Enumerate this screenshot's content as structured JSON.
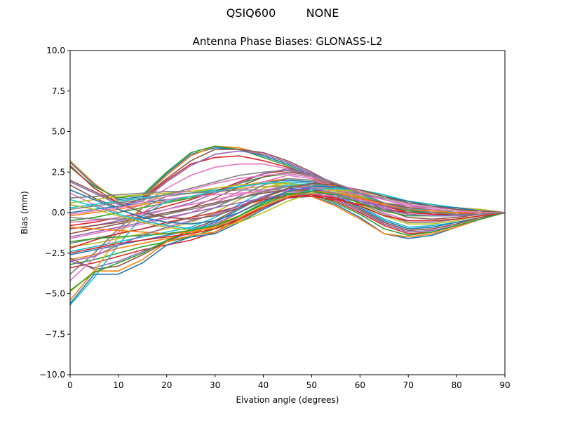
{
  "figure": {
    "suptitle_left": "QSIQ600",
    "suptitle_right": "NONE"
  },
  "chart_data": {
    "type": "line",
    "title": "Antenna Phase Biases: GLONASS-L2",
    "xlabel": "Elvation angle (degrees)",
    "ylabel": "Bias (mm)",
    "xlim": [
      0,
      90
    ],
    "ylim": [
      -10.0,
      10.0
    ],
    "xticks": [
      0,
      10,
      20,
      30,
      40,
      50,
      60,
      70,
      80,
      90
    ],
    "xtick_labels": [
      "0",
      "10",
      "20",
      "30",
      "40",
      "50",
      "60",
      "70",
      "80",
      "90"
    ],
    "yticks": [
      -10.0,
      -7.5,
      -5.0,
      -2.5,
      0.0,
      2.5,
      5.0,
      7.5,
      10.0
    ],
    "ytick_labels": [
      "−10.0",
      "−7.5",
      "−5.0",
      "−2.5",
      "0.0",
      "2.5",
      "5.0",
      "7.5",
      "10.0"
    ],
    "grid": false,
    "legend": "none",
    "colors": [
      "#1f77b4",
      "#ff7f0e",
      "#2ca02c",
      "#d62728",
      "#9467bd",
      "#8c564b",
      "#e377c2",
      "#7f7f7f",
      "#bcbd22",
      "#17becf"
    ],
    "x": [
      0,
      5,
      10,
      15,
      20,
      25,
      30,
      35,
      40,
      45,
      50,
      55,
      60,
      65,
      70,
      75,
      80,
      85,
      90
    ],
    "series": [
      {
        "values": [
          3.1,
          1.7,
          0.8,
          1.0,
          2.4,
          3.6,
          4.0,
          3.9,
          3.5,
          3.0,
          2.3,
          1.5,
          0.9,
          0.4,
          0.1,
          -0.1,
          -0.2,
          -0.1,
          0.0
        ]
      },
      {
        "values": [
          3.2,
          1.8,
          0.7,
          0.9,
          2.3,
          3.5,
          4.1,
          4.0,
          3.6,
          3.1,
          2.4,
          1.6,
          0.9,
          0.4,
          0.1,
          0.0,
          -0.1,
          -0.1,
          0.0
        ]
      },
      {
        "values": [
          2.8,
          1.6,
          0.9,
          1.1,
          2.5,
          3.7,
          4.1,
          3.9,
          3.4,
          2.9,
          2.2,
          1.4,
          0.8,
          0.4,
          0.2,
          0.0,
          -0.1,
          -0.1,
          0.0
        ]
      },
      {
        "values": [
          2.9,
          1.5,
          0.6,
          0.8,
          2.0,
          3.0,
          3.4,
          3.5,
          3.2,
          2.8,
          2.2,
          1.5,
          0.9,
          0.5,
          0.2,
          0.1,
          0.0,
          0.0,
          0.0
        ]
      },
      {
        "values": [
          1.9,
          1.2,
          0.5,
          0.7,
          1.9,
          2.9,
          3.6,
          3.8,
          3.6,
          3.1,
          2.4,
          1.6,
          0.9,
          0.4,
          0.1,
          0.0,
          -0.1,
          -0.1,
          0.0
        ]
      },
      {
        "values": [
          1.7,
          0.9,
          0.3,
          0.9,
          2.1,
          3.2,
          3.9,
          3.9,
          3.7,
          3.2,
          2.5,
          1.7,
          1.0,
          0.4,
          0.1,
          0.0,
          -0.1,
          -0.1,
          0.0
        ]
      },
      {
        "values": [
          1.2,
          0.5,
          0.0,
          0.5,
          1.5,
          2.3,
          2.8,
          3.0,
          3.0,
          2.7,
          2.2,
          1.6,
          1.0,
          0.5,
          0.2,
          0.1,
          0.0,
          0.0,
          0.0
        ]
      },
      {
        "values": [
          0.9,
          1.0,
          1.1,
          1.2,
          1.3,
          1.3,
          1.4,
          1.5,
          1.6,
          1.6,
          1.5,
          1.4,
          1.2,
          0.9,
          0.6,
          0.4,
          0.3,
          0.2,
          0.0
        ]
      },
      {
        "values": [
          0.6,
          0.8,
          1.0,
          1.1,
          1.2,
          1.3,
          1.4,
          1.5,
          1.6,
          1.7,
          1.6,
          1.5,
          1.3,
          1.0,
          0.7,
          0.5,
          0.3,
          0.2,
          0.0
        ]
      },
      {
        "values": [
          0.3,
          0.5,
          0.7,
          0.9,
          1.1,
          1.2,
          1.4,
          1.6,
          1.8,
          1.8,
          1.7,
          1.5,
          1.2,
          0.9,
          0.6,
          0.4,
          0.3,
          0.1,
          0.0
        ]
      },
      {
        "values": [
          0.0,
          0.2,
          0.4,
          0.6,
          0.8,
          1.0,
          1.3,
          1.6,
          1.9,
          2.0,
          1.9,
          1.6,
          1.2,
          0.8,
          0.5,
          0.3,
          0.2,
          0.1,
          0.0
        ]
      },
      {
        "values": [
          -0.2,
          0.0,
          0.2,
          0.5,
          0.7,
          0.9,
          1.2,
          1.6,
          1.9,
          2.1,
          2.0,
          1.6,
          1.1,
          0.6,
          0.3,
          0.2,
          0.1,
          0.0,
          0.0
        ]
      },
      {
        "values": [
          -0.5,
          -0.3,
          0.0,
          0.3,
          0.6,
          0.9,
          1.3,
          1.8,
          2.2,
          2.4,
          2.2,
          1.7,
          1.1,
          0.5,
          0.1,
          0.0,
          0.0,
          0.0,
          0.0
        ]
      },
      {
        "values": [
          -0.8,
          -0.6,
          -0.3,
          0.0,
          0.4,
          0.8,
          1.3,
          1.9,
          2.4,
          2.6,
          2.3,
          1.7,
          1.0,
          0.4,
          0.0,
          -0.1,
          -0.1,
          0.0,
          0.0
        ]
      },
      {
        "values": [
          -1.0,
          -0.8,
          -0.5,
          -0.2,
          0.2,
          0.6,
          1.2,
          1.8,
          2.4,
          2.7,
          2.4,
          1.8,
          1.0,
          0.3,
          -0.1,
          -0.2,
          -0.2,
          -0.1,
          0.0
        ]
      },
      {
        "values": [
          -1.3,
          -1.0,
          -0.7,
          -0.4,
          -0.1,
          0.3,
          0.9,
          1.6,
          2.2,
          2.5,
          2.3,
          1.7,
          0.9,
          0.2,
          -0.3,
          -0.4,
          -0.3,
          -0.1,
          0.0
        ]
      },
      {
        "values": [
          -1.6,
          -1.3,
          -1.0,
          -0.7,
          -0.4,
          0.0,
          0.6,
          1.3,
          1.9,
          2.3,
          2.1,
          1.5,
          0.7,
          0.0,
          -0.5,
          -0.5,
          -0.4,
          -0.2,
          0.0
        ]
      },
      {
        "values": [
          -1.9,
          -1.6,
          -1.3,
          -1.0,
          -0.7,
          -0.3,
          0.3,
          1.0,
          1.7,
          2.1,
          2.0,
          1.4,
          0.6,
          -0.1,
          -0.6,
          -0.6,
          -0.4,
          -0.2,
          0.0
        ]
      },
      {
        "values": [
          -2.1,
          -1.9,
          -1.6,
          -1.3,
          -1.0,
          -0.6,
          0.0,
          0.8,
          1.5,
          1.9,
          1.8,
          1.3,
          0.5,
          -0.2,
          -0.7,
          -0.7,
          -0.5,
          -0.2,
          0.0
        ]
      },
      {
        "values": [
          -2.4,
          -2.1,
          -1.8,
          -1.5,
          -1.2,
          -0.9,
          -0.3,
          0.5,
          1.3,
          1.7,
          1.6,
          1.1,
          0.4,
          -0.4,
          -0.9,
          -0.8,
          -0.6,
          -0.3,
          0.0
        ]
      },
      {
        "values": [
          -2.6,
          -2.3,
          -2.0,
          -1.7,
          -1.4,
          -1.1,
          -0.6,
          0.2,
          1.0,
          1.5,
          1.4,
          1.0,
          0.3,
          -0.5,
          -1.0,
          -0.9,
          -0.6,
          -0.3,
          0.0
        ]
      },
      {
        "values": [
          -2.9,
          -2.6,
          -2.2,
          -1.9,
          -1.6,
          -1.3,
          -0.8,
          0.0,
          0.8,
          1.3,
          1.3,
          0.9,
          0.2,
          -0.6,
          -1.1,
          -1.0,
          -0.7,
          -0.3,
          0.0
        ]
      },
      {
        "values": [
          -3.2,
          -2.9,
          -2.5,
          -2.1,
          -1.8,
          -1.5,
          -1.0,
          -0.2,
          0.6,
          1.2,
          1.2,
          0.8,
          0.1,
          -0.7,
          -1.2,
          -1.1,
          -0.8,
          -0.4,
          0.0
        ]
      },
      {
        "values": [
          -3.4,
          -3.1,
          -2.7,
          -2.3,
          -2.0,
          -1.7,
          -1.2,
          -0.4,
          0.4,
          1.0,
          1.1,
          0.7,
          0.0,
          -0.8,
          -1.3,
          -1.2,
          -0.8,
          -0.4,
          0.0
        ]
      },
      {
        "values": [
          -3.0,
          -3.4,
          -3.0,
          -2.4,
          -1.8,
          -1.2,
          -0.7,
          0.0,
          0.7,
          1.2,
          1.2,
          0.8,
          0.1,
          -0.7,
          -1.2,
          -1.1,
          -0.8,
          -0.4,
          0.0
        ]
      },
      {
        "values": [
          -2.8,
          -3.5,
          -3.3,
          -2.6,
          -1.8,
          -1.0,
          -0.5,
          0.3,
          1.0,
          1.4,
          1.3,
          0.9,
          0.2,
          -0.6,
          -1.1,
          -1.0,
          -0.7,
          -0.3,
          0.0
        ]
      },
      {
        "values": [
          -4.2,
          -2.8,
          -1.2,
          0.0,
          0.8,
          1.0,
          1.1,
          1.2,
          1.3,
          1.3,
          1.2,
          1.0,
          0.8,
          0.5,
          0.3,
          0.2,
          0.1,
          0.1,
          0.0
        ]
      },
      {
        "values": [
          -3.8,
          -2.5,
          -1.0,
          0.3,
          1.0,
          1.2,
          1.3,
          1.4,
          1.4,
          1.4,
          1.3,
          1.1,
          0.9,
          0.6,
          0.4,
          0.3,
          0.2,
          0.1,
          0.0
        ]
      },
      {
        "values": [
          -4.9,
          -3.6,
          -1.5,
          0.5,
          1.2,
          1.3,
          1.5,
          1.7,
          1.8,
          1.8,
          1.6,
          1.3,
          1.0,
          0.6,
          0.3,
          0.2,
          0.1,
          0.1,
          0.0
        ]
      },
      {
        "values": [
          -5.7,
          -4.0,
          -2.0,
          -0.2,
          0.7,
          1.0,
          1.3,
          1.6,
          1.8,
          1.9,
          1.8,
          1.5,
          1.1,
          0.6,
          0.3,
          0.1,
          0.1,
          0.0,
          0.0
        ]
      },
      {
        "values": [
          -5.6,
          -3.8,
          -3.8,
          -3.1,
          -2.0,
          -1.5,
          -1.3,
          -0.6,
          0.2,
          0.9,
          1.0,
          0.5,
          -0.3,
          -1.3,
          -1.6,
          -1.4,
          -0.9,
          -0.4,
          0.0
        ]
      },
      {
        "values": [
          -5.4,
          -3.6,
          -3.6,
          -2.9,
          -1.8,
          -1.4,
          -1.2,
          -0.5,
          0.3,
          1.0,
          1.0,
          0.4,
          -0.4,
          -1.3,
          -1.5,
          -1.3,
          -0.9,
          -0.4,
          0.0
        ]
      },
      {
        "values": [
          -4.8,
          -3.7,
          -3.1,
          -2.5,
          -1.7,
          -1.2,
          -0.9,
          -0.2,
          0.6,
          1.2,
          1.1,
          0.6,
          -0.1,
          -1.0,
          -1.4,
          -1.2,
          -0.8,
          -0.4,
          0.0
        ]
      },
      {
        "values": [
          -2.2,
          -1.7,
          -1.3,
          -1.0,
          -0.6,
          -0.3,
          0.0,
          0.4,
          0.8,
          1.0,
          1.0,
          0.8,
          0.5,
          0.2,
          0.0,
          -0.1,
          -0.1,
          0.0,
          0.0
        ]
      },
      {
        "values": [
          -1.5,
          -1.2,
          -0.9,
          -0.6,
          -0.3,
          0.0,
          0.3,
          0.6,
          0.9,
          1.1,
          1.1,
          0.9,
          0.7,
          0.4,
          0.2,
          0.1,
          0.0,
          0.0,
          0.0
        ]
      },
      {
        "values": [
          -1.0,
          -0.8,
          -0.6,
          -0.3,
          0.0,
          0.3,
          0.6,
          0.9,
          1.2,
          1.4,
          1.4,
          1.2,
          0.9,
          0.6,
          0.3,
          0.2,
          0.1,
          0.0,
          0.0
        ]
      },
      {
        "values": [
          -0.6,
          -0.5,
          -0.3,
          -0.1,
          0.2,
          0.5,
          0.8,
          1.1,
          1.4,
          1.6,
          1.6,
          1.4,
          1.1,
          0.8,
          0.5,
          0.3,
          0.2,
          0.1,
          0.0
        ]
      },
      {
        "values": [
          -0.3,
          -0.4,
          -0.4,
          -0.3,
          -0.1,
          0.2,
          0.5,
          0.9,
          1.3,
          1.6,
          1.7,
          1.5,
          1.2,
          0.9,
          0.6,
          0.4,
          0.2,
          0.1,
          0.0
        ]
      },
      {
        "values": [
          0.5,
          0.2,
          -0.2,
          -0.6,
          -0.9,
          -1.1,
          -1.0,
          -0.6,
          0.0,
          0.7,
          1.2,
          1.4,
          1.3,
          1.0,
          0.6,
          0.4,
          0.2,
          0.1,
          0.0
        ]
      },
      {
        "values": [
          0.8,
          0.4,
          -0.1,
          -0.5,
          -0.8,
          -1.0,
          -0.8,
          -0.4,
          0.3,
          1.0,
          1.4,
          1.5,
          1.4,
          1.1,
          0.7,
          0.5,
          0.3,
          0.1,
          0.0
        ]
      },
      {
        "values": [
          1.4,
          0.8,
          0.2,
          -0.3,
          -0.6,
          -0.7,
          -0.5,
          0.0,
          0.7,
          1.3,
          1.6,
          1.6,
          1.4,
          1.0,
          0.7,
          0.4,
          0.3,
          0.1,
          0.0
        ]
      },
      {
        "values": [
          -0.9,
          -1.0,
          -1.1,
          -1.2,
          -1.3,
          -1.2,
          -0.9,
          -0.3,
          0.4,
          1.0,
          1.3,
          1.2,
          0.9,
          0.5,
          0.2,
          0.1,
          0.0,
          0.0,
          0.0
        ]
      },
      {
        "values": [
          -1.8,
          -1.6,
          -1.5,
          -1.4,
          -1.3,
          -1.1,
          -0.8,
          -0.2,
          0.5,
          1.1,
          1.3,
          1.1,
          0.6,
          0.1,
          -0.2,
          -0.2,
          -0.2,
          -0.1,
          0.0
        ]
      },
      {
        "values": [
          -2.5,
          -2.2,
          -1.9,
          -1.7,
          -1.5,
          -1.3,
          -1.0,
          -0.4,
          0.3,
          0.9,
          1.1,
          0.9,
          0.4,
          -0.2,
          -0.5,
          -0.5,
          -0.4,
          -0.2,
          0.0
        ]
      },
      {
        "values": [
          -3.0,
          -2.7,
          -2.0,
          -1.4,
          -0.9,
          -0.5,
          -0.1,
          0.4,
          1.0,
          1.4,
          1.5,
          1.2,
          0.7,
          0.2,
          -0.1,
          -0.2,
          -0.2,
          -0.1,
          0.0
        ]
      },
      {
        "values": [
          2.0,
          1.3,
          0.6,
          0.0,
          -0.3,
          -0.4,
          -0.2,
          0.3,
          0.9,
          1.5,
          1.8,
          1.7,
          1.4,
          1.0,
          0.6,
          0.4,
          0.2,
          0.1,
          0.0
        ]
      },
      {
        "values": [
          -0.1,
          0.1,
          0.3,
          0.6,
          1.0,
          1.4,
          1.8,
          2.1,
          2.3,
          2.4,
          2.2,
          1.8,
          1.3,
          0.8,
          0.4,
          0.2,
          0.1,
          0.0,
          0.0
        ]
      },
      {
        "values": [
          0.2,
          0.4,
          0.6,
          0.8,
          1.1,
          1.5,
          1.9,
          2.3,
          2.5,
          2.6,
          2.3,
          1.8,
          1.2,
          0.6,
          0.2,
          0.0,
          -0.1,
          -0.1,
          0.0
        ]
      }
    ]
  }
}
